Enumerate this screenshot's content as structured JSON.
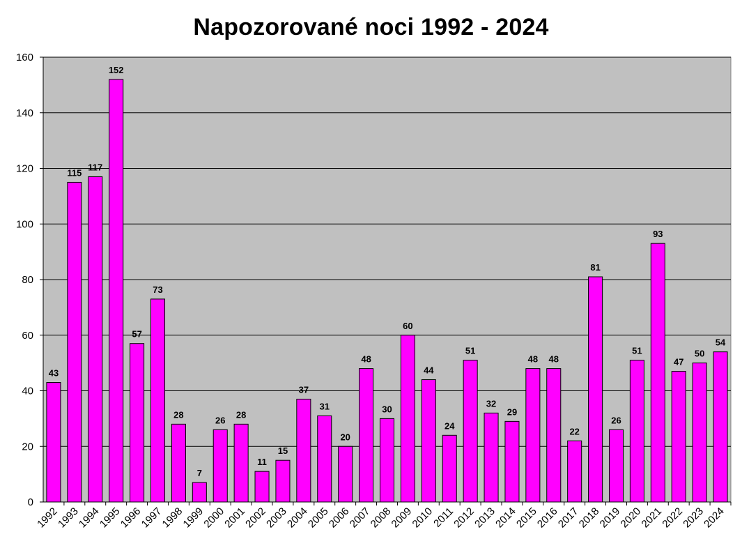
{
  "chart_data": {
    "type": "bar",
    "title": "Napozorované noci 1992 - 2024",
    "xlabel": "",
    "ylabel": "",
    "ylim": [
      0,
      160
    ],
    "yticks": [
      0,
      20,
      40,
      60,
      80,
      100,
      120,
      140,
      160
    ],
    "grid": true,
    "legend": "none",
    "colors": {
      "bar": "#ff00ff",
      "plot_background": "#c0c0c0",
      "gridline": "#000000"
    },
    "categories": [
      "1992",
      "1993",
      "1994",
      "1995",
      "1996",
      "1997",
      "1998",
      "1999",
      "2000",
      "2001",
      "2002",
      "2003",
      "2004",
      "2005",
      "2006",
      "2007",
      "2008",
      "2009",
      "2010",
      "2011",
      "2012",
      "2013",
      "2014",
      "2015",
      "2016",
      "2017",
      "2018",
      "2019",
      "2020",
      "2021",
      "2022",
      "2023",
      "2024"
    ],
    "values": [
      43,
      115,
      117,
      152,
      57,
      73,
      28,
      7,
      26,
      28,
      11,
      15,
      37,
      31,
      20,
      48,
      30,
      60,
      44,
      24,
      51,
      32,
      29,
      48,
      48,
      22,
      81,
      26,
      51,
      93,
      47,
      50,
      54
    ]
  }
}
